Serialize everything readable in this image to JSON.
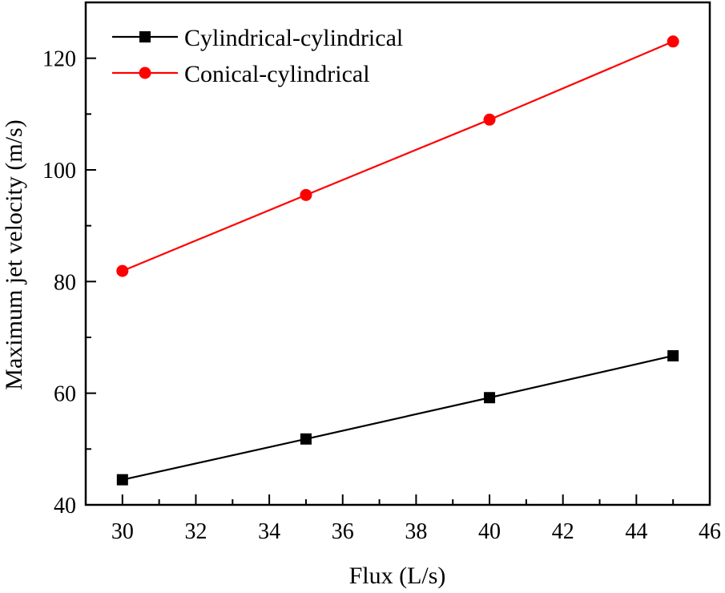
{
  "chart_data": {
    "type": "line",
    "title": "",
    "xlabel": "Flux (L/s)",
    "ylabel": "Maximum jet velocity (m/s)",
    "xlim": [
      29,
      46
    ],
    "ylim": [
      40,
      130
    ],
    "xticks": [
      30,
      32,
      34,
      36,
      38,
      40,
      42,
      44,
      46
    ],
    "yticks": [
      40,
      60,
      80,
      100,
      120
    ],
    "grid": false,
    "legend_position": "top-left",
    "x": [
      30,
      35,
      40,
      45
    ],
    "series": [
      {
        "name": "Cylindrical-cylindrical",
        "marker": "square",
        "color": "#000000",
        "values": [
          44.5,
          51.8,
          59.2,
          66.7
        ]
      },
      {
        "name": "Conical-cylindrical",
        "marker": "circle",
        "color": "#ff0000",
        "values": [
          81.9,
          95.5,
          109.0,
          123.0
        ]
      }
    ]
  }
}
